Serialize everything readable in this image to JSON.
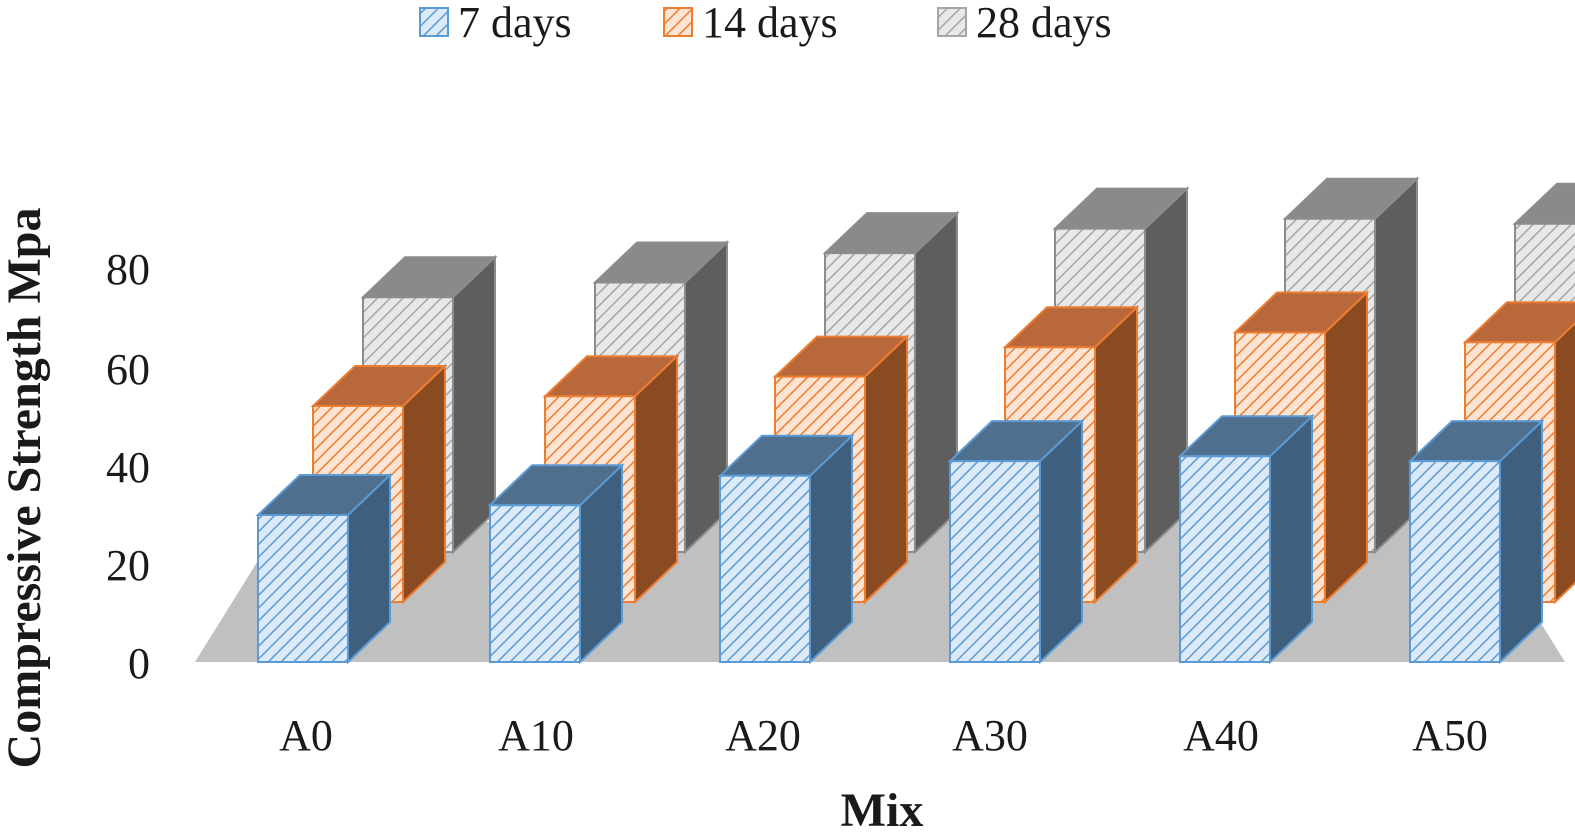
{
  "chart_data": {
    "type": "bar",
    "style": "3d-clustered-column",
    "title": "",
    "xlabel": "Mix",
    "ylabel": "Compressive Strength Mpa",
    "ylim": [
      0,
      80
    ],
    "yticks": [
      "0",
      "20",
      "40",
      "60",
      "80"
    ],
    "categories": [
      "A0",
      "A10",
      "A20",
      "A30",
      "A40",
      "A50"
    ],
    "series": [
      {
        "name": "7 days",
        "values": [
          30,
          32,
          38,
          41,
          42,
          41
        ],
        "color": "#5b9bd5"
      },
      {
        "name": "14 days",
        "values": [
          40,
          42,
          46,
          52,
          55,
          53
        ],
        "color": "#ed7d31"
      },
      {
        "name": "28 days",
        "values": [
          52,
          55,
          61,
          66,
          68,
          67
        ],
        "color": "#a5a5a5"
      }
    ],
    "legend_position": "top",
    "grid": false
  }
}
